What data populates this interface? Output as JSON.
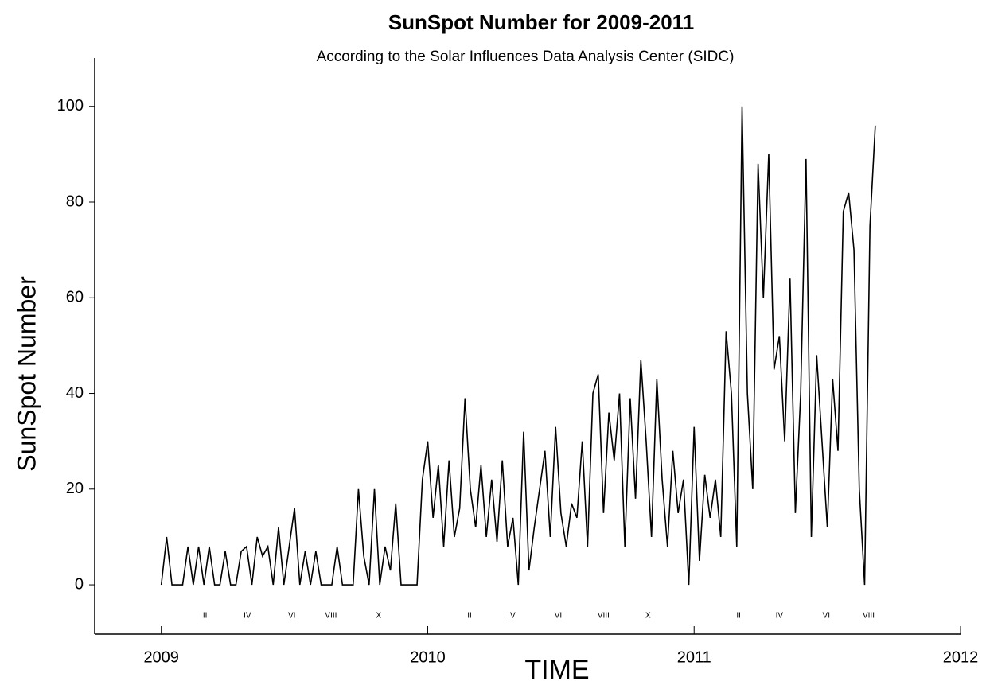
{
  "chart_data": {
    "type": "line",
    "title": "SunSpot Number for 2009-2011",
    "subtitle": "According to the Solar Influences Data Analysis Center (SIDC)",
    "y_label": "SunSpot Number",
    "x_label": "TIME",
    "color": "#000000",
    "xlim": [
      2008.75,
      2012.0
    ],
    "xticks": [
      2009,
      2010,
      2011,
      2012
    ],
    "ylim": [
      -10.3,
      110.1
    ],
    "yticks": [
      0,
      20,
      40,
      60,
      80,
      100
    ],
    "x": [
      2009.0,
      2009.02,
      2009.04,
      2009.06,
      2009.08,
      2009.1,
      2009.12,
      2009.14,
      2009.16,
      2009.18,
      2009.2,
      2009.22,
      2009.24,
      2009.26,
      2009.28,
      2009.3,
      2009.32,
      2009.34,
      2009.36,
      2009.38,
      2009.4,
      2009.42,
      2009.44,
      2009.46,
      2009.48,
      2009.5,
      2009.52,
      2009.54,
      2009.56,
      2009.58,
      2009.6,
      2009.62,
      2009.64,
      2009.66,
      2009.68,
      2009.7,
      2009.72,
      2009.74,
      2009.76,
      2009.78,
      2009.8,
      2009.82,
      2009.84,
      2009.86,
      2009.88,
      2009.9,
      2009.92,
      2009.94,
      2009.96,
      2009.98,
      2010.0,
      2010.02,
      2010.04,
      2010.06,
      2010.08,
      2010.1,
      2010.12,
      2010.14,
      2010.16,
      2010.18,
      2010.2,
      2010.22,
      2010.24,
      2010.26,
      2010.28,
      2010.3,
      2010.32,
      2010.34,
      2010.36,
      2010.38,
      2010.4,
      2010.42,
      2010.44,
      2010.46,
      2010.48,
      2010.5,
      2010.52,
      2010.54,
      2010.56,
      2010.58,
      2010.6,
      2010.62,
      2010.64,
      2010.66,
      2010.68,
      2010.7,
      2010.72,
      2010.74,
      2010.76,
      2010.78,
      2010.8,
      2010.82,
      2010.84,
      2010.86,
      2010.88,
      2010.9,
      2010.92,
      2010.94,
      2010.96,
      2010.98,
      2011.0,
      2011.02,
      2011.04,
      2011.06,
      2011.08,
      2011.1,
      2011.12,
      2011.14,
      2011.16,
      2011.18,
      2011.2,
      2011.22,
      2011.24,
      2011.26,
      2011.28,
      2011.3,
      2011.32,
      2011.34,
      2011.36,
      2011.38,
      2011.4,
      2011.42,
      2011.44,
      2011.46,
      2011.48,
      2011.5,
      2011.52,
      2011.54,
      2011.56,
      2011.58,
      2011.6,
      2011.62,
      2011.64,
      2011.66,
      2011.68
    ],
    "values": [
      0,
      10,
      0,
      0,
      0,
      8,
      0,
      8,
      0,
      8,
      0,
      0,
      7,
      0,
      0,
      7,
      8,
      0,
      10,
      6,
      8,
      0,
      12,
      0,
      8,
      16,
      0,
      7,
      0,
      7,
      0,
      0,
      0,
      8,
      0,
      0,
      0,
      20,
      6,
      0,
      20,
      0,
      8,
      3,
      17,
      0,
      0,
      0,
      0,
      22,
      30,
      14,
      25,
      8,
      26,
      10,
      16,
      39,
      20,
      12,
      25,
      10,
      22,
      9,
      26,
      8,
      14,
      0,
      32,
      3,
      12,
      20,
      28,
      10,
      33,
      15,
      8,
      17,
      14,
      30,
      8,
      40,
      44,
      15,
      36,
      26,
      40,
      8,
      39,
      18,
      47,
      30,
      10,
      43,
      22,
      8,
      28,
      15,
      22,
      0,
      33,
      5,
      23,
      14,
      22,
      10,
      53,
      40,
      8,
      100,
      40,
      20,
      88,
      60,
      90,
      45,
      52,
      30,
      64,
      15,
      40,
      89,
      10,
      48,
      30,
      12,
      43,
      28,
      78,
      82,
      70,
      20,
      0,
      75,
      96
    ],
    "month_markers": [
      {
        "x": 2009.164,
        "label": "II"
      },
      {
        "x": 2009.323,
        "label": "IV"
      },
      {
        "x": 2009.49,
        "label": "VI"
      },
      {
        "x": 2009.637,
        "label": "VIII"
      },
      {
        "x": 2009.816,
        "label": "X"
      },
      {
        "x": 2010.157,
        "label": "II"
      },
      {
        "x": 2010.315,
        "label": "IV"
      },
      {
        "x": 2010.49,
        "label": "VI"
      },
      {
        "x": 2010.66,
        "label": "VIII"
      },
      {
        "x": 2010.827,
        "label": "X"
      },
      {
        "x": 2011.167,
        "label": "II"
      },
      {
        "x": 2011.32,
        "label": "IV"
      },
      {
        "x": 2011.496,
        "label": "VI"
      },
      {
        "x": 2011.655,
        "label": "VIII"
      }
    ]
  }
}
